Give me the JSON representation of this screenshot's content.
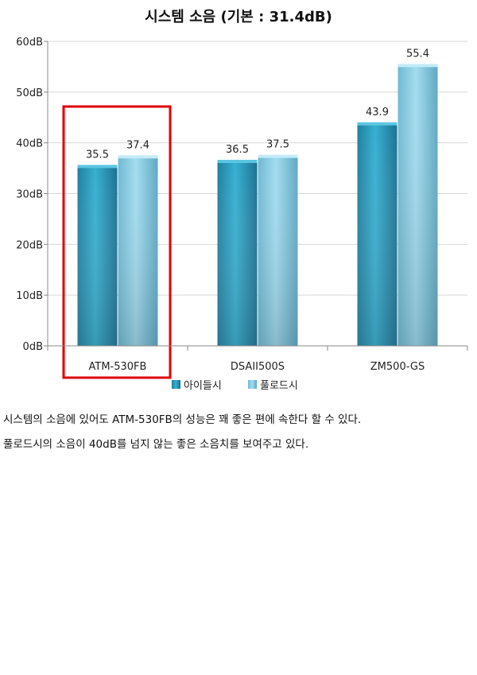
{
  "chart_data": {
    "type": "bar",
    "title": "시스템 소음 (기본 : 31.4dB)",
    "categories": [
      "ATM-530FB",
      "DSAII500S",
      "ZM500-GS"
    ],
    "series": [
      {
        "name": "아이들시",
        "values": [
          35.5,
          36.5,
          43.9
        ],
        "value_labels": [
          "35.5",
          "36.5",
          "43.9"
        ]
      },
      {
        "name": "풀로드시",
        "values": [
          37.4,
          37.5,
          55.4
        ],
        "value_labels": [
          "37.4",
          "37.5",
          "55.4"
        ]
      }
    ],
    "ylim": [
      0,
      60
    ],
    "yticks": [
      0,
      10,
      20,
      30,
      40,
      50,
      60
    ],
    "ytick_labels": [
      "0dB",
      "10dB",
      "20dB",
      "30dB",
      "40dB",
      "50dB",
      "60dB"
    ],
    "gridlines": true,
    "legend_position": "bottom",
    "highlighted_category": "ATM-530FB",
    "colors": {
      "series1": "#2b9fbf",
      "series2": "#8fd0e6",
      "highlight": "#e00000",
      "grid": "#d8d8d8"
    }
  },
  "caption": [
    "시스템의 소음에 있어도 ATM-530FB의 성능은 꽤 좋은 편에 속한다 할 수 있다.",
    "풀로드시의 소음이 40dB를 넘지 않는 좋은 소음치를 보여주고 있다."
  ]
}
